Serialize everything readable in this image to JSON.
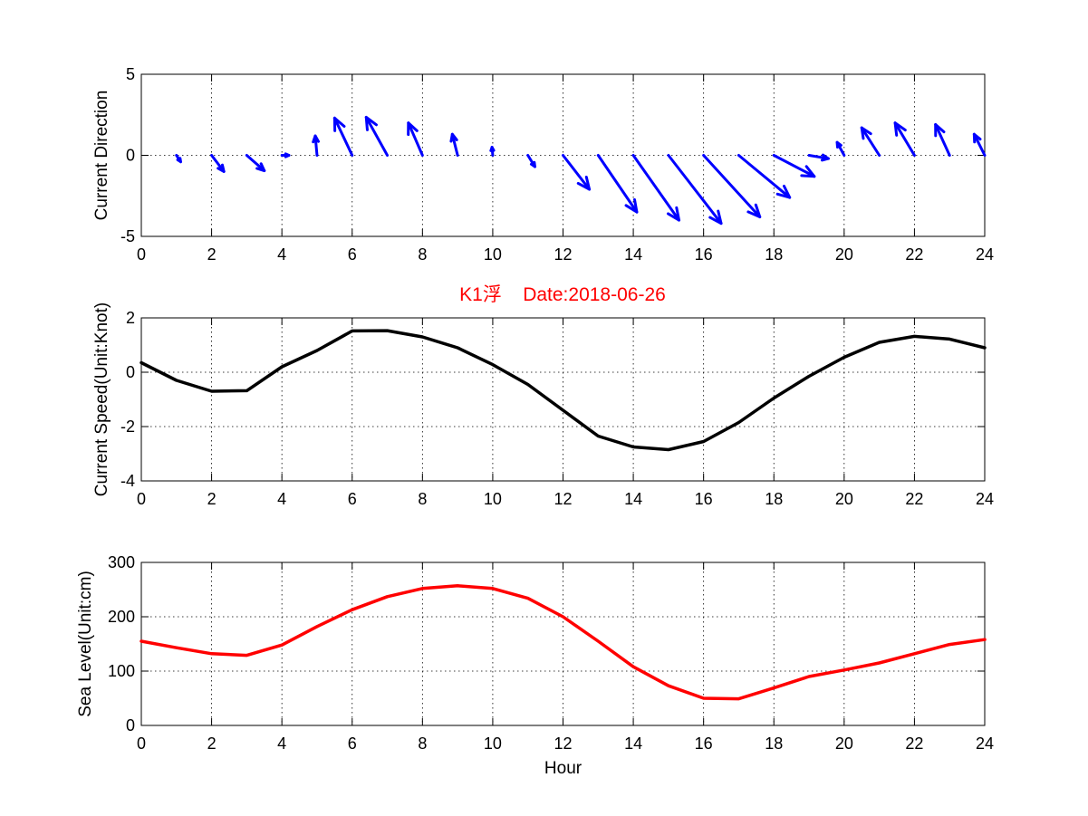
{
  "figure": {
    "title": "K1浮    Date:2018-06-26",
    "title_color": "#ff0000"
  },
  "chart_data": [
    {
      "type": "quiver",
      "ylabel": "Current Direction",
      "xlabel": "",
      "xlim": [
        0,
        24
      ],
      "ylim": [
        -5,
        5
      ],
      "xticks": [
        0,
        2,
        4,
        6,
        8,
        10,
        12,
        14,
        16,
        18,
        20,
        22,
        24
      ],
      "yticks": [
        -5,
        0,
        5
      ],
      "grid": true,
      "color": "#0000ff",
      "x": [
        1,
        2,
        3,
        4,
        5,
        6,
        7,
        8,
        9,
        10,
        11,
        12,
        13,
        14,
        15,
        16,
        17,
        18,
        19,
        20,
        21,
        22,
        23,
        24
      ],
      "u": [
        0.12,
        0.35,
        0.5,
        0.2,
        -0.05,
        -0.5,
        -0.6,
        -0.4,
        -0.15,
        -0.02,
        0.2,
        0.75,
        1.1,
        1.3,
        1.5,
        1.6,
        1.45,
        1.15,
        0.55,
        -0.2,
        -0.5,
        -0.55,
        -0.4,
        -0.3
      ],
      "v": [
        -0.4,
        -1.0,
        -0.95,
        0,
        1.2,
        2.3,
        2.35,
        2.0,
        1.3,
        0.5,
        -0.7,
        -2.1,
        -3.5,
        -4.0,
        -4.2,
        -3.8,
        -2.6,
        -1.3,
        -0.2,
        0.8,
        1.7,
        2.0,
        1.9,
        1.3
      ]
    },
    {
      "type": "line",
      "ylabel": "Current Speed(Unit:Knot)",
      "xlabel": "",
      "xlim": [
        0,
        24
      ],
      "ylim": [
        -4,
        2
      ],
      "xticks": [
        0,
        2,
        4,
        6,
        8,
        10,
        12,
        14,
        16,
        18,
        20,
        22,
        24
      ],
      "yticks": [
        -4,
        -2,
        0,
        2
      ],
      "grid": true,
      "color": "#000000",
      "x": [
        0,
        1,
        2,
        3,
        4,
        5,
        6,
        7,
        8,
        9,
        10,
        11,
        12,
        13,
        14,
        15,
        16,
        17,
        18,
        19,
        20,
        21,
        22,
        23,
        24
      ],
      "y": [
        0.35,
        -0.3,
        -0.7,
        -0.68,
        0.2,
        0.8,
        1.52,
        1.53,
        1.3,
        0.9,
        0.28,
        -0.45,
        -1.4,
        -2.35,
        -2.75,
        -2.85,
        -2.55,
        -1.85,
        -0.95,
        -0.15,
        0.55,
        1.1,
        1.32,
        1.22,
        0.9
      ]
    },
    {
      "type": "line",
      "ylabel": "Sea Level(Unit:cm)",
      "xlabel": "Hour",
      "xlim": [
        0,
        24
      ],
      "ylim": [
        0,
        300
      ],
      "xticks": [
        0,
        2,
        4,
        6,
        8,
        10,
        12,
        14,
        16,
        18,
        20,
        22,
        24
      ],
      "yticks": [
        0,
        100,
        200,
        300
      ],
      "grid": true,
      "color": "#ff0000",
      "x": [
        0,
        1,
        2,
        3,
        4,
        5,
        6,
        7,
        8,
        9,
        10,
        11,
        12,
        13,
        14,
        15,
        16,
        17,
        18,
        19,
        20,
        21,
        22,
        23,
        24
      ],
      "y": [
        155,
        143,
        132,
        129,
        148,
        182,
        213,
        237,
        252,
        257,
        252,
        234,
        200,
        155,
        108,
        73,
        50,
        49,
        69,
        90,
        102,
        115,
        132,
        149,
        158
      ]
    }
  ]
}
